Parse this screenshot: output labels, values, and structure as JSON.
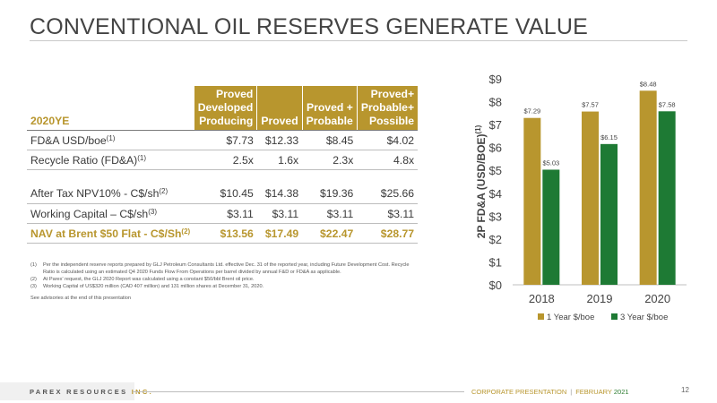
{
  "slide": {
    "title": "CONVENTIONAL OIL RESERVES GENERATE VALUE"
  },
  "table": {
    "headers": [
      "2020YE",
      "Proved\nDeveloped\nProducing",
      "Proved",
      "Proved +\nProbable",
      "Proved+\nProbable+\nPossible"
    ],
    "rows": [
      {
        "label": "FD&A USD/boe",
        "sup": "(1)",
        "values": [
          "$7.73",
          "$12.33",
          "$8.45",
          "$4.02"
        ]
      },
      {
        "label": "Recycle Ratio (FD&A)",
        "sup": "(1)",
        "values": [
          "2.5x",
          "1.6x",
          "2.3x",
          "4.8x"
        ]
      },
      {
        "label": "After Tax NPV10% - C$/sh",
        "sup": "(2)",
        "values": [
          "$10.45",
          "$14.38",
          "$19.36",
          "$25.66"
        ]
      },
      {
        "label": "Working Capital – C$/sh",
        "sup": "(3)",
        "values": [
          "$3.11",
          "$3.11",
          "$3.11",
          "$3.11"
        ]
      },
      {
        "label": "NAV at Brent $50 Flat - C$/Sh",
        "sup": "(2)",
        "values": [
          "$13.56",
          "$17.49",
          "$22.47",
          "$28.77"
        ]
      }
    ]
  },
  "footnotes": [
    {
      "n": "(1)",
      "text": "Per the independent reserve reports prepared by GLJ Petroleum Consultants Ltd. effective Dec. 31 of the reported year, including Future Development Cost. Recycle Ratio is calculated using an estimated Q4 2020 Funds Flow From Operations per barrel divided by annual F&D or FD&A as applicable."
    },
    {
      "n": "(2)",
      "text": "At Parex' request, the GLJ 2020 Report was calculated using a constant $50/bbl Brent oil price."
    },
    {
      "n": "(3)",
      "text": "Working Capital of US$320 million (CAD 407 million) and 131 million shares at December 31, 2020."
    }
  ],
  "advisory": "See advisories at the end of this presentation",
  "chart_data": {
    "type": "bar",
    "categories": [
      "2018",
      "2019",
      "2020"
    ],
    "series": [
      {
        "name": "1 Year $/boe",
        "values": [
          7.29,
          7.57,
          8.48
        ],
        "labels": [
          "$7.29",
          "$7.57",
          "$8.48"
        ],
        "color": "#b8962e"
      },
      {
        "name": "3 Year $/boe",
        "values": [
          5.03,
          6.15,
          7.58
        ],
        "labels": [
          "$5.03",
          "$6.15",
          "$7.58"
        ],
        "color": "#1e7a34"
      }
    ],
    "ylabel": "2P FD&A (USD/BOE)",
    "ylabel_sup": "(1)",
    "ylim": [
      0,
      9
    ],
    "yticks": [
      "$0",
      "$1",
      "$2",
      "$3",
      "$4",
      "$5",
      "$6",
      "$7",
      "$8",
      "$9"
    ],
    "grid": false,
    "legend": "bottom"
  },
  "footer": {
    "brand_a": "PAREX RESOURCES",
    "brand_b": "INC.",
    "doc": "CORPORATE PRESENTATION",
    "sep": "|",
    "month": "FEBRUARY",
    "year": "2021",
    "page": "12"
  },
  "colors": {
    "gold": "#b8962e",
    "green": "#1e7a34"
  }
}
